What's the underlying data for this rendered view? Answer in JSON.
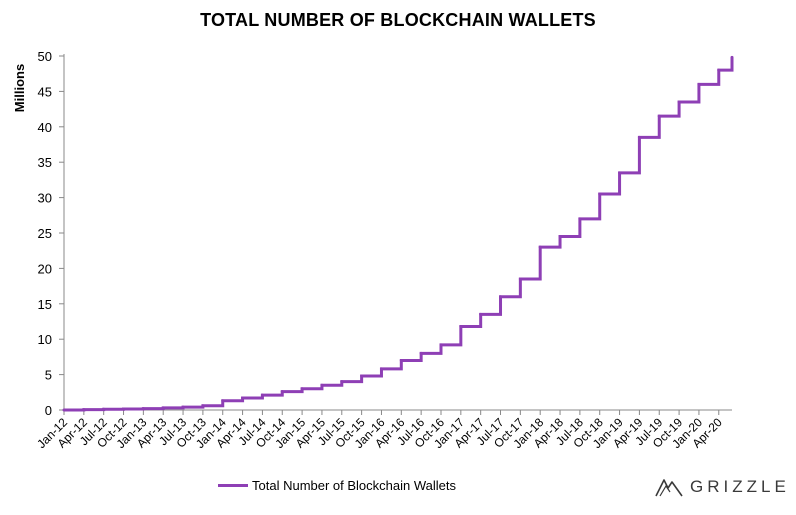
{
  "chart_data": {
    "type": "line",
    "title": "TOTAL NUMBER OF BLOCKCHAIN WALLETS",
    "ylabel": "Millions",
    "xlabel": "",
    "ylim": [
      0,
      50
    ],
    "yticks": [
      0,
      5,
      10,
      15,
      20,
      25,
      30,
      35,
      40,
      45,
      50
    ],
    "xlim": [
      "Jan-12",
      "Jun-20"
    ],
    "xtick_labels": [
      "Jan-12",
      "Apr-12",
      "Jul-12",
      "Oct-12",
      "Jan-13",
      "Apr-13",
      "Jul-13",
      "Oct-13",
      "Jan-14",
      "Apr-14",
      "Jul-14",
      "Oct-14",
      "Jan-15",
      "Apr-15",
      "Jul-15",
      "Oct-15",
      "Jan-16",
      "Apr-16",
      "Jul-16",
      "Oct-16",
      "Jan-17",
      "Apr-17",
      "Jul-17",
      "Oct-17",
      "Jan-18",
      "Apr-18",
      "Jul-18",
      "Oct-18",
      "Jan-19",
      "Apr-19",
      "Jul-19",
      "Oct-19",
      "Jan-20",
      "Apr-20"
    ],
    "grid": false,
    "legend_position": "bottom",
    "step": true,
    "series": [
      {
        "name": "Total Number of Blockchain Wallets",
        "color": "#8e3fb5",
        "x": [
          "Jan-12",
          "Apr-12",
          "Jul-12",
          "Oct-12",
          "Jan-13",
          "Apr-13",
          "Jul-13",
          "Oct-13",
          "Jan-14",
          "Apr-14",
          "Jul-14",
          "Oct-14",
          "Jan-15",
          "Apr-15",
          "Jul-15",
          "Oct-15",
          "Jan-16",
          "Apr-16",
          "Jul-16",
          "Oct-16",
          "Jan-17",
          "Apr-17",
          "Jul-17",
          "Oct-17",
          "Jan-18",
          "Apr-18",
          "Jul-18",
          "Oct-18",
          "Jan-19",
          "Apr-19",
          "Jul-19",
          "Oct-19",
          "Jan-20",
          "Apr-20",
          "Jun-20"
        ],
        "values": [
          0,
          0.05,
          0.1,
          0.15,
          0.2,
          0.3,
          0.4,
          0.6,
          1.3,
          1.7,
          2.1,
          2.6,
          3.0,
          3.5,
          4.0,
          4.8,
          5.8,
          7.0,
          8.0,
          9.2,
          11.8,
          13.5,
          16.0,
          18.5,
          23.0,
          24.5,
          27.0,
          30.5,
          33.5,
          38.5,
          41.5,
          43.5,
          46.0,
          48.0,
          49.8
        ]
      }
    ]
  },
  "legend": {
    "label": "Total Number of Blockchain Wallets"
  },
  "brand": {
    "name": "GRIZZLE",
    "icon": "grizzle-logo-icon"
  }
}
